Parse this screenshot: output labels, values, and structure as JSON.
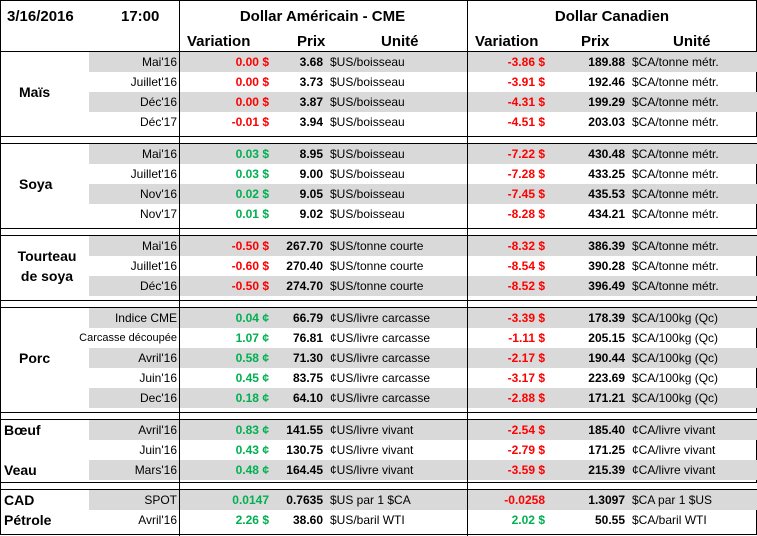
{
  "header": {
    "date": "3/16/2016",
    "time": "17:00",
    "us_group": "Dollar Américain - CME",
    "ca_group": "Dollar Canadien",
    "col_variation": "Variation",
    "col_prix": "Prix",
    "col_unite": "Unité"
  },
  "colors": {
    "positive": "#00b050",
    "negative": "#ff0000",
    "shade": "#d9d9d9"
  },
  "sections": [
    {
      "label_lines": [
        "Maïs"
      ],
      "rows": [
        {
          "contract": "Mai'16",
          "us_var": "0.00 $",
          "us_var_sign": "neg",
          "us_price": "3.68",
          "us_unit": "$US/boisseau",
          "ca_var": "-3.86 $",
          "ca_var_sign": "neg",
          "ca_price": "189.88",
          "ca_unit": "$CA/tonne métr."
        },
        {
          "contract": "Juillet'16",
          "us_var": "0.00 $",
          "us_var_sign": "neg",
          "us_price": "3.73",
          "us_unit": "$US/boisseau",
          "ca_var": "-3.91 $",
          "ca_var_sign": "neg",
          "ca_price": "192.46",
          "ca_unit": "$CA/tonne métr."
        },
        {
          "contract": "Déc'16",
          "us_var": "0.00 $",
          "us_var_sign": "neg",
          "us_price": "3.87",
          "us_unit": "$US/boisseau",
          "ca_var": "-4.31 $",
          "ca_var_sign": "neg",
          "ca_price": "199.29",
          "ca_unit": "$CA/tonne métr."
        },
        {
          "contract": "Déc'17",
          "us_var": "-0.01 $",
          "us_var_sign": "neg",
          "us_price": "3.94",
          "us_unit": "$US/boisseau",
          "ca_var": "-4.51 $",
          "ca_var_sign": "neg",
          "ca_price": "203.03",
          "ca_unit": "$CA/tonne métr."
        }
      ]
    },
    {
      "label_lines": [
        "Soya"
      ],
      "rows": [
        {
          "contract": "Mai'16",
          "us_var": "0.03 $",
          "us_var_sign": "pos",
          "us_price": "8.95",
          "us_unit": "$US/boisseau",
          "ca_var": "-7.22 $",
          "ca_var_sign": "neg",
          "ca_price": "430.48",
          "ca_unit": "$CA/tonne métr."
        },
        {
          "contract": "Juillet'16",
          "us_var": "0.03 $",
          "us_var_sign": "pos",
          "us_price": "9.00",
          "us_unit": "$US/boisseau",
          "ca_var": "-7.28 $",
          "ca_var_sign": "neg",
          "ca_price": "433.25",
          "ca_unit": "$CA/tonne métr."
        },
        {
          "contract": "Nov'16",
          "us_var": "0.02 $",
          "us_var_sign": "pos",
          "us_price": "9.05",
          "us_unit": "$US/boisseau",
          "ca_var": "-7.45 $",
          "ca_var_sign": "neg",
          "ca_price": "435.53",
          "ca_unit": "$CA/tonne métr."
        },
        {
          "contract": "Nov'17",
          "us_var": "0.01 $",
          "us_var_sign": "pos",
          "us_price": "9.02",
          "us_unit": "$US/boisseau",
          "ca_var": "-8.28 $",
          "ca_var_sign": "neg",
          "ca_price": "434.21",
          "ca_unit": "$CA/tonne métr."
        }
      ]
    },
    {
      "label_lines": [
        "Tourteau",
        "de soya"
      ],
      "rows": [
        {
          "contract": "Mai'16",
          "us_var": "-0.50 $",
          "us_var_sign": "neg",
          "us_price": "267.70",
          "us_unit": "$US/tonne courte",
          "ca_var": "-8.32 $",
          "ca_var_sign": "neg",
          "ca_price": "386.39",
          "ca_unit": "$CA/tonne métr."
        },
        {
          "contract": "Juillet'16",
          "us_var": "-0.60 $",
          "us_var_sign": "neg",
          "us_price": "270.40",
          "us_unit": "$US/tonne courte",
          "ca_var": "-8.54 $",
          "ca_var_sign": "neg",
          "ca_price": "390.28",
          "ca_unit": "$CA/tonne métr."
        },
        {
          "contract": "Déc'16",
          "us_var": "-0.50 $",
          "us_var_sign": "neg",
          "us_price": "274.70",
          "us_unit": "$US/tonne courte",
          "ca_var": "-8.52 $",
          "ca_var_sign": "neg",
          "ca_price": "396.49",
          "ca_unit": "$CA/tonne métr."
        }
      ]
    },
    {
      "label_lines": [
        "Porc"
      ],
      "rows": [
        {
          "contract": "Indice CME",
          "us_var": "0.04 ¢",
          "us_var_sign": "pos",
          "us_price": "66.79",
          "us_unit": "¢US/livre carcasse",
          "ca_var": "-3.39 $",
          "ca_var_sign": "neg",
          "ca_price": "178.39",
          "ca_unit": "$CA/100kg (Qc)"
        },
        {
          "contract": "Carcasse découpée",
          "us_var": "1.07 ¢",
          "us_var_sign": "pos",
          "us_price": "76.81",
          "us_unit": "¢US/livre carcasse",
          "ca_var": "-1.11 $",
          "ca_var_sign": "neg",
          "ca_price": "205.15",
          "ca_unit": "$CA/100kg (Qc)"
        },
        {
          "contract": "Avril'16",
          "us_var": "0.58 ¢",
          "us_var_sign": "pos",
          "us_price": "71.30",
          "us_unit": "¢US/livre carcasse",
          "ca_var": "-2.17 $",
          "ca_var_sign": "neg",
          "ca_price": "190.44",
          "ca_unit": "$CA/100kg (Qc)"
        },
        {
          "contract": "Juin'16",
          "us_var": "0.45 ¢",
          "us_var_sign": "pos",
          "us_price": "83.75",
          "us_unit": "¢US/livre carcasse",
          "ca_var": "-3.17 $",
          "ca_var_sign": "neg",
          "ca_price": "223.69",
          "ca_unit": "$CA/100kg (Qc)"
        },
        {
          "contract": "Dec'16",
          "us_var": "0.18 ¢",
          "us_var_sign": "pos",
          "us_price": "64.10",
          "us_unit": "¢US/livre carcasse",
          "ca_var": "-2.88 $",
          "ca_var_sign": "neg",
          "ca_price": "171.21",
          "ca_unit": "$CA/100kg (Qc)"
        }
      ]
    },
    {
      "label_lines": [],
      "row_labels": [
        "Bœuf",
        "",
        "Veau"
      ],
      "rows": [
        {
          "contract": "Avril'16",
          "us_var": "0.83 ¢",
          "us_var_sign": "pos",
          "us_price": "141.55",
          "us_unit": "¢US/livre vivant",
          "ca_var": "-2.54 $",
          "ca_var_sign": "neg",
          "ca_price": "185.40",
          "ca_unit": "¢CA/livre vivant"
        },
        {
          "contract": "Juin'16",
          "us_var": "0.43 ¢",
          "us_var_sign": "pos",
          "us_price": "130.75",
          "us_unit": "¢US/livre vivant",
          "ca_var": "-2.79 $",
          "ca_var_sign": "neg",
          "ca_price": "171.25",
          "ca_unit": "¢CA/livre vivant"
        },
        {
          "contract": "Mars'16",
          "us_var": "0.48 ¢",
          "us_var_sign": "pos",
          "us_price": "164.45",
          "us_unit": "¢US/livre vivant",
          "ca_var": "-3.59 $",
          "ca_var_sign": "neg",
          "ca_price": "215.39",
          "ca_unit": "¢CA/livre vivant"
        }
      ]
    },
    {
      "label_lines": [],
      "row_labels": [
        "CAD",
        "Pétrole"
      ],
      "rows": [
        {
          "contract": "SPOT",
          "us_var": "0.0147",
          "us_var_sign": "pos",
          "us_price": "0.7635",
          "us_unit": "$US par 1 $CA",
          "ca_var": "-0.0258",
          "ca_var_sign": "neg",
          "ca_price": "1.3097",
          "ca_unit": "$CA par 1 $US"
        },
        {
          "contract": "Avril'16",
          "us_var": "2.26 $",
          "us_var_sign": "pos",
          "us_price": "38.60",
          "us_unit": "$US/baril WTI",
          "ca_var": "2.02 $",
          "ca_var_sign": "pos",
          "ca_price": "50.55",
          "ca_unit": "$CA/baril WTI"
        }
      ]
    }
  ]
}
